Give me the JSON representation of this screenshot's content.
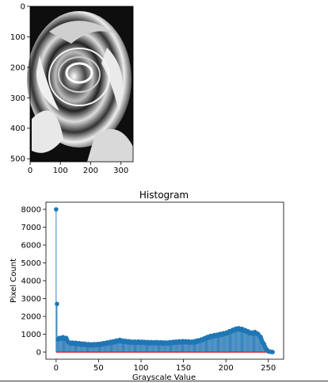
{
  "chart_data": [
    {
      "type": "image",
      "xlim": [
        0,
        340
      ],
      "ylim": [
        0,
        510
      ],
      "x_ticks": [
        "0",
        "100",
        "200",
        "300"
      ],
      "y_ticks": [
        "0",
        "100",
        "200",
        "300",
        "400",
        "500"
      ],
      "x_tick_values": [
        0,
        100,
        200,
        300
      ],
      "y_tick_values": [
        0,
        100,
        200,
        300,
        400,
        500
      ]
    },
    {
      "type": "stem",
      "title": "Histogram",
      "xlabel": "Grayscale Value",
      "ylabel": "Pixel Count",
      "xlim": [
        -12,
        268
      ],
      "ylim": [
        -400,
        8400
      ],
      "x_ticks": [
        "0",
        "50",
        "100",
        "150",
        "200",
        "250"
      ],
      "x_tick_values": [
        0,
        50,
        100,
        150,
        200,
        250
      ],
      "y_ticks": [
        "0",
        "1000",
        "2000",
        "3000",
        "4000",
        "5000",
        "6000",
        "7000",
        "8000"
      ],
      "y_tick_values": [
        0,
        1000,
        2000,
        3000,
        4000,
        5000,
        6000,
        7000,
        8000
      ],
      "stem_color": "#1f77b4",
      "baseline_color": "#d62728",
      "series": [
        {
          "anchor_x": [
            0,
            1,
            2,
            3,
            5,
            8,
            12,
            15,
            20,
            30,
            40,
            50,
            60,
            70,
            75,
            80,
            90,
            100,
            110,
            120,
            130,
            140,
            150,
            160,
            165,
            170,
            175,
            180,
            185,
            190,
            195,
            200,
            205,
            210,
            213,
            216,
            220,
            225,
            230,
            235,
            240,
            245,
            248,
            250,
            252,
            255
          ],
          "anchor_y": [
            8000,
            2700,
            700,
            800,
            750,
            800,
            750,
            500,
            500,
            450,
            400,
            420,
            500,
            600,
            650,
            600,
            550,
            550,
            520,
            520,
            500,
            550,
            580,
            550,
            600,
            650,
            750,
            850,
            900,
            950,
            1000,
            1050,
            1150,
            1250,
            1300,
            1300,
            1250,
            1150,
            1050,
            1100,
            900,
            400,
            150,
            40,
            20,
            0
          ]
        }
      ]
    }
  ]
}
